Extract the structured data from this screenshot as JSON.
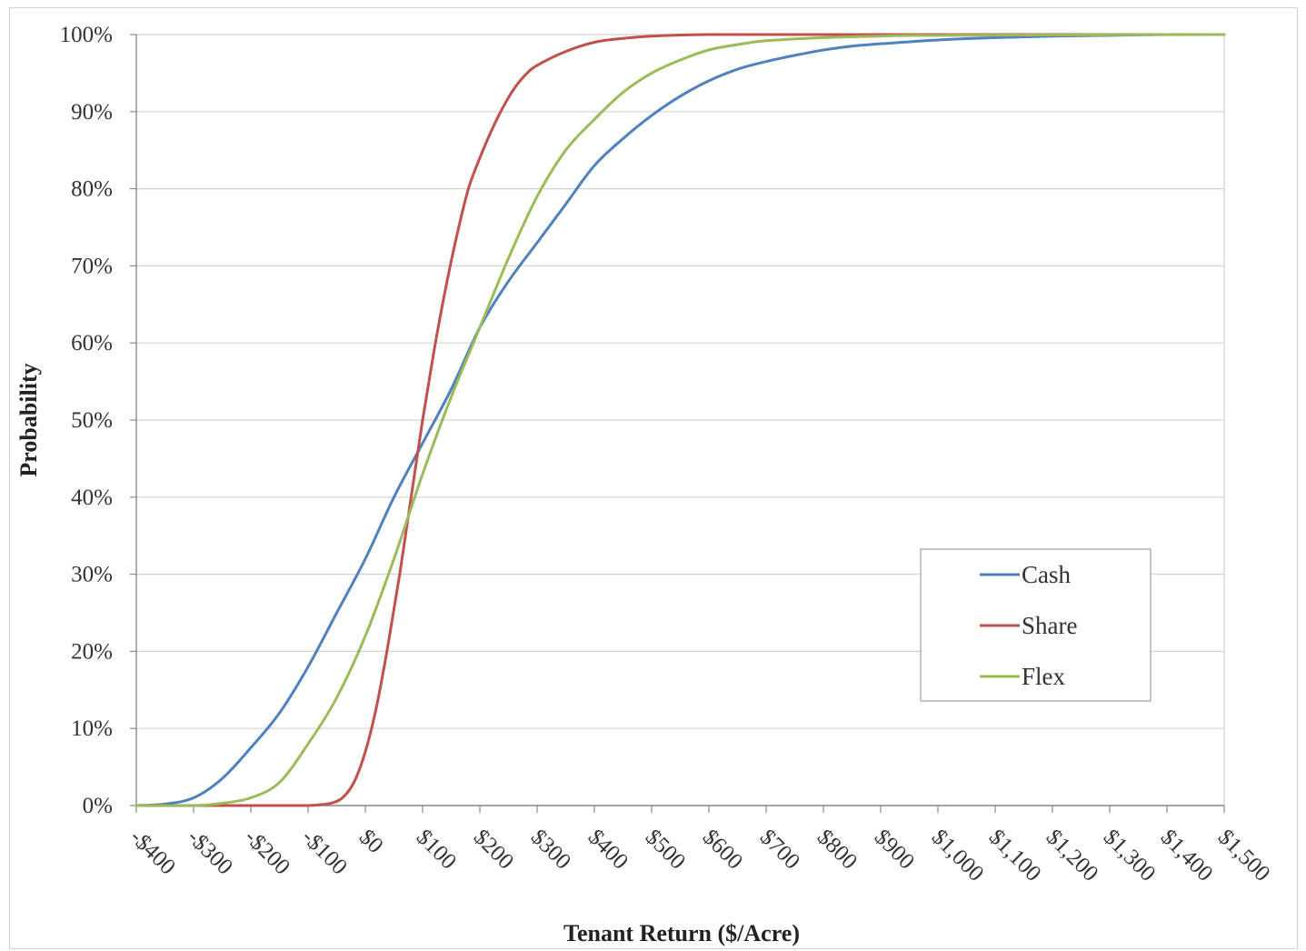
{
  "chart_data": {
    "type": "line",
    "title": "",
    "xlabel": "Tenant Return ($/Acre)",
    "ylabel": "Probability",
    "xlim": [
      -400,
      1500
    ],
    "ylim": [
      0,
      100
    ],
    "grid": true,
    "legend_position": "bottom-right",
    "x_tick_values": [
      -400,
      -300,
      -200,
      -100,
      0,
      100,
      200,
      300,
      400,
      500,
      600,
      700,
      800,
      900,
      1000,
      1100,
      1200,
      1300,
      1400,
      1500
    ],
    "x_tick_labels": [
      "-$400",
      "-$300",
      "-$200",
      "-$100",
      "$0",
      "$100",
      "$200",
      "$300",
      "$400",
      "$500",
      "$600",
      "$700",
      "$800",
      "$900",
      "$1,000",
      "$1,100",
      "$1,200",
      "$1,300",
      "$1,400",
      "$1,500"
    ],
    "y_tick_values": [
      0,
      10,
      20,
      30,
      40,
      50,
      60,
      70,
      80,
      90,
      100
    ],
    "y_tick_labels": [
      "0%",
      "10%",
      "20%",
      "30%",
      "40%",
      "50%",
      "60%",
      "70%",
      "80%",
      "90%",
      "100%"
    ],
    "series": [
      {
        "name": "Cash",
        "color": "#4f81bd",
        "x": [
          -400,
          -350,
          -300,
          -250,
          -200,
          -150,
          -100,
          -50,
          0,
          50,
          100,
          150,
          200,
          250,
          300,
          350,
          400,
          450,
          500,
          550,
          600,
          650,
          700,
          750,
          800,
          850,
          900,
          1000,
          1100,
          1200,
          1300,
          1400,
          1500
        ],
        "y": [
          0,
          0.2,
          1,
          3.5,
          7.5,
          12,
          18,
          25,
          32,
          40,
          47,
          54,
          62,
          68,
          73,
          78,
          83,
          86.5,
          89.5,
          92,
          94,
          95.5,
          96.5,
          97.3,
          98,
          98.5,
          98.8,
          99.3,
          99.6,
          99.8,
          99.9,
          100,
          100
        ]
      },
      {
        "name": "Share",
        "color": "#c0504d",
        "x": [
          -400,
          -300,
          -200,
          -150,
          -100,
          -80,
          -60,
          -40,
          -20,
          0,
          20,
          40,
          60,
          80,
          100,
          120,
          140,
          160,
          180,
          200,
          220,
          240,
          260,
          280,
          300,
          350,
          400,
          450,
          500,
          600,
          700,
          1500
        ],
        "y": [
          0,
          0,
          0,
          0,
          0,
          0.1,
          0.3,
          1,
          3,
          7,
          13,
          21,
          30,
          40,
          50,
          59,
          67,
          74,
          80,
          84,
          87.5,
          90.5,
          93,
          94.8,
          96,
          97.8,
          99,
          99.5,
          99.8,
          100,
          100,
          100
        ]
      },
      {
        "name": "Flex",
        "color": "#9bbb59",
        "x": [
          -400,
          -300,
          -250,
          -200,
          -150,
          -100,
          -50,
          0,
          50,
          100,
          150,
          200,
          250,
          300,
          350,
          400,
          450,
          500,
          550,
          600,
          650,
          700,
          800,
          900,
          1000,
          1500
        ],
        "y": [
          0,
          0,
          0.3,
          1,
          3,
          8,
          14,
          22,
          32,
          43,
          53,
          62,
          71,
          79,
          85,
          89,
          92.5,
          95,
          96.7,
          98,
          98.7,
          99.2,
          99.6,
          99.8,
          99.9,
          100
        ]
      }
    ]
  }
}
